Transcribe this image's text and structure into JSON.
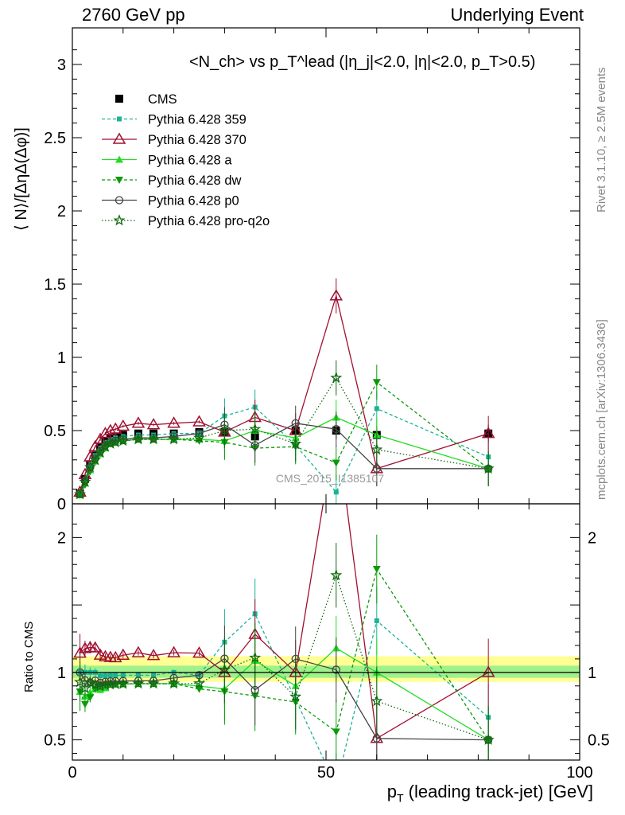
{
  "header": {
    "left": "2760 GeV pp",
    "right": "Underlying Event"
  },
  "side_labels": {
    "rivet": "Rivet 3.1.10, ≥ 2.5M events",
    "mcplots": "mcplots.cern.ch [arXiv:1306.3436]"
  },
  "watermark": "CMS_2015_I1385107",
  "ratio_ylabel": "Ratio to CMS",
  "chart_data": {
    "type": "line",
    "title": "<N_ch> vs p_T^lead (|η_j|<2.0, |η|<2.0, p_T>0.5)",
    "xlabel": "p_T (leading track-jet) [GeV]",
    "ylabel": "⟨ N⟩/[ΔηΔ(Δφ)]",
    "xlim": [
      0,
      100
    ],
    "ylim": [
      0,
      3.25
    ],
    "ratio_ylim": [
      0.35,
      2.25
    ],
    "x_ticks": [
      0,
      50,
      100
    ],
    "y_ticks": [
      0,
      0.5,
      1,
      1.5,
      2,
      2.5,
      3
    ],
    "ratio_y_ticks": [
      0.5,
      1,
      2
    ],
    "x": [
      1.5,
      2.5,
      3.5,
      4.5,
      5.5,
      6.5,
      7.5,
      8.5,
      10,
      13,
      16,
      20,
      25,
      30,
      36,
      44,
      52,
      60,
      82
    ],
    "series": [
      {
        "name": "CMS",
        "color": "#000000",
        "marker": "square",
        "values": [
          0.07,
          0.17,
          0.27,
          0.33,
          0.39,
          0.43,
          0.45,
          0.46,
          0.47,
          0.48,
          0.48,
          0.48,
          0.49,
          0.49,
          0.46,
          0.5,
          0.5,
          0.47,
          0.48
        ]
      },
      {
        "name": "Pythia 6.428 359",
        "color": "#1ab394",
        "marker": "square-small",
        "dash": "4,3",
        "values": [
          0.07,
          0.17,
          0.27,
          0.33,
          0.38,
          0.42,
          0.44,
          0.45,
          0.46,
          0.47,
          0.47,
          0.48,
          0.48,
          0.6,
          0.66,
          0.4,
          0.08,
          0.65,
          0.32
        ]
      },
      {
        "name": "Pythia 6.428 370",
        "color": "#a01030",
        "marker": "triangle-open",
        "values": [
          0.08,
          0.2,
          0.32,
          0.39,
          0.44,
          0.48,
          0.5,
          0.51,
          0.53,
          0.55,
          0.54,
          0.55,
          0.56,
          0.49,
          0.59,
          0.5,
          1.42,
          0.24,
          0.48
        ]
      },
      {
        "name": "Pythia 6.428 a",
        "color": "#22dd22",
        "marker": "triangle",
        "values": [
          0.06,
          0.14,
          0.23,
          0.29,
          0.34,
          0.38,
          0.41,
          0.42,
          0.43,
          0.44,
          0.44,
          0.44,
          0.44,
          0.43,
          0.5,
          0.45,
          0.59,
          0.47,
          0.24
        ]
      },
      {
        "name": "Pythia 6.428 dw",
        "color": "#0a9a0a",
        "marker": "triangle-down",
        "dash": "4,3",
        "values": [
          0.06,
          0.13,
          0.22,
          0.29,
          0.35,
          0.39,
          0.41,
          0.42,
          0.43,
          0.44,
          0.44,
          0.44,
          0.43,
          0.42,
          0.38,
          0.39,
          0.28,
          0.83,
          0.24
        ]
      },
      {
        "name": "Pythia 6.428 p0",
        "color": "#444444",
        "marker": "circle-open",
        "values": [
          0.07,
          0.16,
          0.25,
          0.31,
          0.36,
          0.4,
          0.42,
          0.43,
          0.44,
          0.45,
          0.45,
          0.46,
          0.48,
          0.54,
          0.4,
          0.55,
          0.51,
          0.24,
          0.24
        ]
      },
      {
        "name": "Pythia 6.428 pro-q2o",
        "color": "#126a12",
        "marker": "star",
        "dash": "1.5,2.5",
        "values": [
          0.065,
          0.15,
          0.25,
          0.3,
          0.35,
          0.39,
          0.41,
          0.42,
          0.43,
          0.44,
          0.44,
          0.44,
          0.45,
          0.5,
          0.51,
          0.41,
          0.86,
          0.37,
          0.24
        ]
      }
    ]
  }
}
